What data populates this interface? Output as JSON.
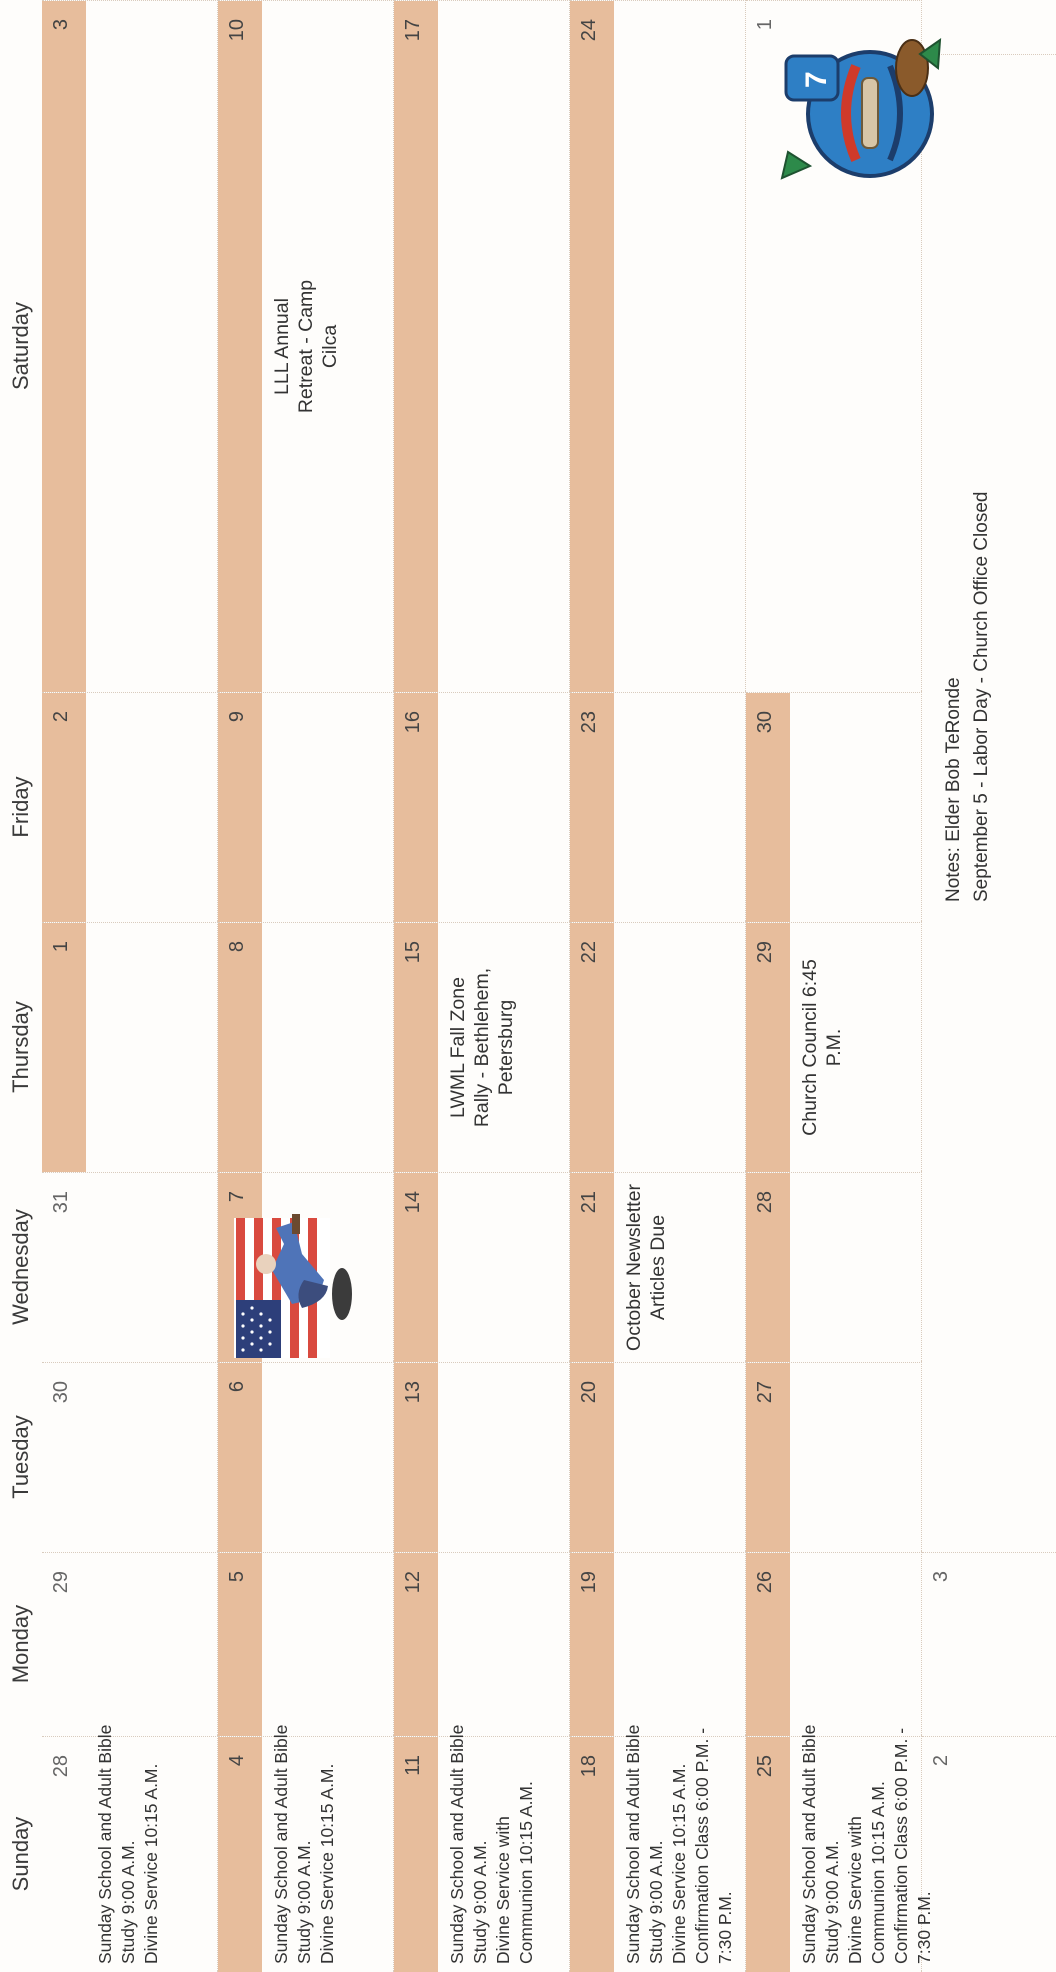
{
  "calendar": {
    "days": [
      "Sunday",
      "Monday",
      "Tuesday",
      "Wednesday",
      "Thursday",
      "Friday",
      "Saturday"
    ],
    "colors": {
      "daybar": "#e7bd9c",
      "background": "#fefdfb"
    },
    "weeks": [
      {
        "cells": [
          {
            "num": "28",
            "events": [
              "Sunday School and Adult Bible Study  9:00 A.M.",
              "Divine Service  10:15 A.M."
            ]
          },
          {
            "num": "29",
            "events": []
          },
          {
            "num": "30",
            "events": []
          },
          {
            "num": "31",
            "events": []
          },
          {
            "num": "1",
            "events": []
          },
          {
            "num": "2",
            "events": []
          },
          {
            "num": "3",
            "events": []
          }
        ]
      },
      {
        "cells": [
          {
            "num": "4",
            "events": [
              "Sunday School and Adult Bible Study  9:00 A.M.",
              "Divine Service  10:15 A.M."
            ]
          },
          {
            "num": "5",
            "events": []
          },
          {
            "num": "6",
            "events": []
          },
          {
            "num": "7",
            "events": []
          },
          {
            "num": "8",
            "events": []
          },
          {
            "num": "9",
            "events": []
          },
          {
            "num": "10",
            "events": [
              "LLL Annual",
              "Retreat - Camp",
              "Cilca"
            ]
          }
        ]
      },
      {
        "cells": [
          {
            "num": "11",
            "events": [
              "Sunday School and Adult Bible Study  9:00 A.M.",
              "Divine Service with Communion 10:15 A.M."
            ]
          },
          {
            "num": "12",
            "events": []
          },
          {
            "num": "13",
            "events": []
          },
          {
            "num": "14",
            "events": []
          },
          {
            "num": "15",
            "events": [
              "LWML Fall Zone",
              "Rally - Bethlehem,",
              "Petersburg"
            ]
          },
          {
            "num": "16",
            "events": []
          },
          {
            "num": "17",
            "events": []
          }
        ]
      },
      {
        "cells": [
          {
            "num": "18",
            "events": [
              "Sunday School and Adult Bible Study  9:00 A.M.",
              "Divine Service  10:15 A.M.",
              "Confirmation Class  6:00 P.M. - 7:30 P.M."
            ]
          },
          {
            "num": "19",
            "events": []
          },
          {
            "num": "20",
            "events": []
          },
          {
            "num": "21",
            "events": [
              "October Newsletter",
              "Articles Due"
            ]
          },
          {
            "num": "22",
            "events": []
          },
          {
            "num": "23",
            "events": []
          },
          {
            "num": "24",
            "events": []
          }
        ]
      },
      {
        "cells": [
          {
            "num": "25",
            "events": [
              "Sunday School and Adult Bible Study  9:00 A.M.",
              "Divine Service with Communion 10:15 A.M.",
              "Confirmation Class 6:00 P.M. - 7:30 P.M."
            ]
          },
          {
            "num": "26",
            "events": []
          },
          {
            "num": "27",
            "events": []
          },
          {
            "num": "28",
            "events": []
          },
          {
            "num": "29",
            "events": [
              "Church Council  6:45",
              "P.M."
            ]
          },
          {
            "num": "30",
            "events": []
          },
          {
            "num": "1",
            "events": []
          }
        ]
      }
    ],
    "last_row": {
      "sunday_num": "2",
      "monday_num": "3"
    },
    "notes": [
      "Notes:  Elder  Bob TeRonde",
      "September 5 - Labor Day - Church Office Closed"
    ],
    "clipart": [
      "flag-labor-day-icon",
      "football-player-icon"
    ]
  }
}
